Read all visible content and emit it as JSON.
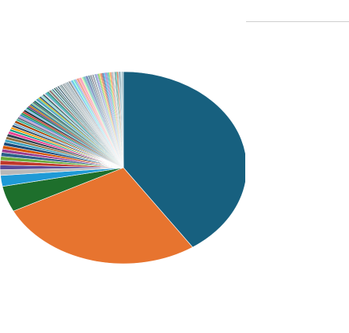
{
  "chart_data": {
    "type": "pie",
    "title": "",
    "slices": [
      {
        "value": 42.0,
        "color": "#17607f"
      },
      {
        "value": 28.0,
        "color": "#e7742f"
      },
      {
        "value": 4.5,
        "color": "#1e6f2c"
      },
      {
        "value": 1.9,
        "color": "#1f9ad6"
      },
      {
        "value": 1.0,
        "color": "#b8b8b8"
      },
      {
        "value": 0.8,
        "color": "#5a4a9a"
      },
      {
        "value": 0.8,
        "color": "#c0392b"
      },
      {
        "value": 0.7,
        "color": "#6aaa3a"
      },
      {
        "value": 0.7,
        "color": "#2d5f8a"
      },
      {
        "value": 0.6,
        "color": "#9b3d8e"
      },
      {
        "value": 0.6,
        "color": "#d35400"
      },
      {
        "value": 0.6,
        "color": "#1a4a7a"
      },
      {
        "value": 0.5,
        "color": "#3ca1c0"
      },
      {
        "value": 0.5,
        "color": "#8d6e3f"
      },
      {
        "value": 0.5,
        "color": "#2c3e50"
      },
      {
        "value": 0.5,
        "color": "#e84393"
      },
      {
        "value": 0.4,
        "color": "#16a085"
      },
      {
        "value": 0.4,
        "color": "#f39c12"
      },
      {
        "value": 0.4,
        "color": "#34495e"
      },
      {
        "value": 0.4,
        "color": "#7fb3d5"
      },
      {
        "value": 0.4,
        "color": "#a04000"
      },
      {
        "value": 0.4,
        "color": "#45b39d"
      },
      {
        "value": 0.3,
        "color": "#5d6d7e"
      },
      {
        "value": 0.3,
        "color": "#c39bd3"
      },
      {
        "value": 0.3,
        "color": "#2e86c1"
      },
      {
        "value": 0.3,
        "color": "#229954"
      },
      {
        "value": 0.3,
        "color": "#cb4335"
      },
      {
        "value": 0.3,
        "color": "#1b2631"
      },
      {
        "value": 0.3,
        "color": "#85c1e9"
      },
      {
        "value": 0.3,
        "color": "#117864"
      },
      {
        "value": 0.25,
        "color": "#6c3483"
      },
      {
        "value": 0.25,
        "color": "#b9770e"
      },
      {
        "value": 0.25,
        "color": "#1f618d"
      },
      {
        "value": 0.25,
        "color": "#7dcea0"
      },
      {
        "value": 0.25,
        "color": "#566573"
      },
      {
        "value": 0.25,
        "color": "#0e6655"
      },
      {
        "value": 0.2,
        "color": "#aed6f1"
      },
      {
        "value": 0.2,
        "color": "#2874a6"
      },
      {
        "value": 0.2,
        "color": "#48c9b0"
      },
      {
        "value": 0.2,
        "color": "#d4ac0d"
      },
      {
        "value": 0.2,
        "color": "#154360"
      },
      {
        "value": 0.2,
        "color": "#a9cce3"
      },
      {
        "value": 0.2,
        "color": "#76d7c4"
      },
      {
        "value": 0.2,
        "color": "#283747"
      },
      {
        "value": 0.2,
        "color": "#d5dbdb"
      },
      {
        "value": 0.2,
        "color": "#5499c7"
      },
      {
        "value": 0.2,
        "color": "#1abc9c"
      },
      {
        "value": 0.15,
        "color": "#2e4053"
      },
      {
        "value": 0.15,
        "color": "#a3e4d7"
      },
      {
        "value": 0.15,
        "color": "#7b241c"
      },
      {
        "value": 0.15,
        "color": "#85929e"
      },
      {
        "value": 0.15,
        "color": "#abebc6"
      },
      {
        "value": 0.15,
        "color": "#1b4f72"
      },
      {
        "value": 0.15,
        "color": "#d6eaf8"
      },
      {
        "value": 0.15,
        "color": "#0b5345"
      },
      {
        "value": 0.15,
        "color": "#aab7b8"
      },
      {
        "value": 0.15,
        "color": "#4a6274"
      },
      {
        "value": 0.15,
        "color": "#c8e6f0"
      },
      {
        "value": 0.15,
        "color": "#1d3b4a"
      },
      {
        "value": 0.15,
        "color": "#e5e8e8"
      },
      {
        "value": 0.1,
        "color": "#3b5b6b"
      },
      {
        "value": 0.1,
        "color": "#b2dfdb"
      },
      {
        "value": 0.1,
        "color": "#263238"
      },
      {
        "value": 0.1,
        "color": "#90a4ae"
      },
      {
        "value": 0.1,
        "color": "#e0f2f1"
      },
      {
        "value": 0.1,
        "color": "#37474f"
      },
      {
        "value": 0.1,
        "color": "#cfd8dc"
      },
      {
        "value": 0.1,
        "color": "#455a64"
      },
      {
        "value": 0.1,
        "color": "#eceff1"
      },
      {
        "value": 0.1,
        "color": "#546e7a"
      },
      {
        "value": 0.1,
        "color": "#b0bec5"
      },
      {
        "value": 0.1,
        "color": "#607d8b"
      },
      {
        "value": 0.1,
        "color": "#78909c"
      },
      {
        "value": 0.1,
        "color": "#dfe6e9"
      },
      {
        "value": 0.1,
        "color": "#2d3436"
      },
      {
        "value": 0.1,
        "color": "#636e72"
      },
      {
        "value": 0.1,
        "color": "#b2bec3"
      },
      {
        "value": 0.1,
        "color": "#74b9ff"
      },
      {
        "value": 0.1,
        "color": "#0984e3"
      },
      {
        "value": 0.1,
        "color": "#00cec9"
      },
      {
        "value": 0.1,
        "color": "#81ecec"
      },
      {
        "value": 0.1,
        "color": "#55efc4"
      },
      {
        "value": 0.1,
        "color": "#00b894"
      },
      {
        "value": 0.1,
        "color": "#a29bfe"
      },
      {
        "value": 0.1,
        "color": "#6c5ce7"
      },
      {
        "value": 0.1,
        "color": "#fdcb6e"
      },
      {
        "value": 0.1,
        "color": "#e17055"
      },
      {
        "value": 0.1,
        "color": "#d63031"
      },
      {
        "value": 0.1,
        "color": "#fab1a0"
      },
      {
        "value": 0.1,
        "color": "#ff7675"
      },
      {
        "value": 0.1,
        "color": "#fd79a8"
      },
      {
        "value": 0.1,
        "color": "#e84393"
      },
      {
        "value": 0.1,
        "color": "#ffeaa7"
      },
      {
        "value": 0.1,
        "color": "#b8e994"
      },
      {
        "value": 0.1,
        "color": "#78e08f"
      },
      {
        "value": 0.1,
        "color": "#38ada9"
      },
      {
        "value": 0.1,
        "color": "#079992"
      },
      {
        "value": 0.1,
        "color": "#60a3bc"
      },
      {
        "value": 0.1,
        "color": "#4a69bd"
      },
      {
        "value": 0.1,
        "color": "#1e3799"
      },
      {
        "value": 0.1,
        "color": "#0c2461"
      },
      {
        "value": 0.1,
        "color": "#82ccdd"
      },
      {
        "value": 0.1,
        "color": "#3c6382"
      },
      {
        "value": 0.1,
        "color": "#0a3d62"
      },
      {
        "value": 0.1,
        "color": "#b8c5d6"
      },
      {
        "value": 0.1,
        "color": "#2f3640"
      },
      {
        "value": 0.1,
        "color": "#718093"
      },
      {
        "value": 0.1,
        "color": "#dcdde1"
      },
      {
        "value": 0.1,
        "color": "#353b48"
      },
      {
        "value": 0.1,
        "color": "#7f8fa6"
      },
      {
        "value": 0.1,
        "color": "#f5f6fa"
      },
      {
        "value": 0.1,
        "color": "#487eb0"
      },
      {
        "value": 0.1,
        "color": "#40739e"
      },
      {
        "value": 0.1,
        "color": "#8c7ae6"
      },
      {
        "value": 0.1,
        "color": "#9c88ff"
      },
      {
        "value": 0.1,
        "color": "#44bd32"
      },
      {
        "value": 0.1,
        "color": "#4cd137"
      },
      {
        "value": 0.1,
        "color": "#e1b12c"
      },
      {
        "value": 0.1,
        "color": "#fbc531"
      },
      {
        "value": 0.1,
        "color": "#c23616"
      },
      {
        "value": 0.1,
        "color": "#e84118"
      },
      {
        "value": 0.1,
        "color": "#273c75"
      },
      {
        "value": 0.1,
        "color": "#192a56"
      },
      {
        "value": 0.1,
        "color": "#0097e6"
      },
      {
        "value": 0.1,
        "color": "#00a8ff"
      },
      {
        "value": 0.1,
        "color": "#8e44ad"
      },
      {
        "value": 0.1,
        "color": "#9b59b6"
      },
      {
        "value": 0.1,
        "color": "#2980b9"
      },
      {
        "value": 0.1,
        "color": "#3498db"
      },
      {
        "value": 0.1,
        "color": "#27ae60"
      },
      {
        "value": 0.1,
        "color": "#2ecc71"
      },
      {
        "value": 0.1,
        "color": "#f1c40f"
      },
      {
        "value": 0.1,
        "color": "#e67e22"
      },
      {
        "value": 0.1,
        "color": "#e74c3c"
      },
      {
        "value": 0.1,
        "color": "#95a5a6"
      },
      {
        "value": 0.1,
        "color": "#7f8c8d"
      },
      {
        "value": 0.1,
        "color": "#bdc3c7"
      },
      {
        "value": 0.1,
        "color": "#ecf0f1"
      },
      {
        "value": 0.1,
        "color": "#34495e"
      },
      {
        "value": 0.1,
        "color": "#16a085"
      },
      {
        "value": 0.1,
        "color": "#1abc9c"
      },
      {
        "value": 0.1,
        "color": "#d35400"
      },
      {
        "value": 0.1,
        "color": "#c0392b"
      },
      {
        "value": 0.1,
        "color": "#a8d8e8"
      },
      {
        "value": 0.1,
        "color": "#5c8a9a"
      },
      {
        "value": 0.1,
        "color": "#3e6e7e"
      },
      {
        "value": 0.1,
        "color": "#9ec9d8"
      },
      {
        "value": 0.1,
        "color": "#c4e3ec"
      },
      {
        "value": 0.1,
        "color": "#4f7b8a"
      },
      {
        "value": 0.1,
        "color": "#86b4c4"
      }
    ],
    "legend": {
      "placement": "right",
      "entries": []
    },
    "grid": false
  }
}
